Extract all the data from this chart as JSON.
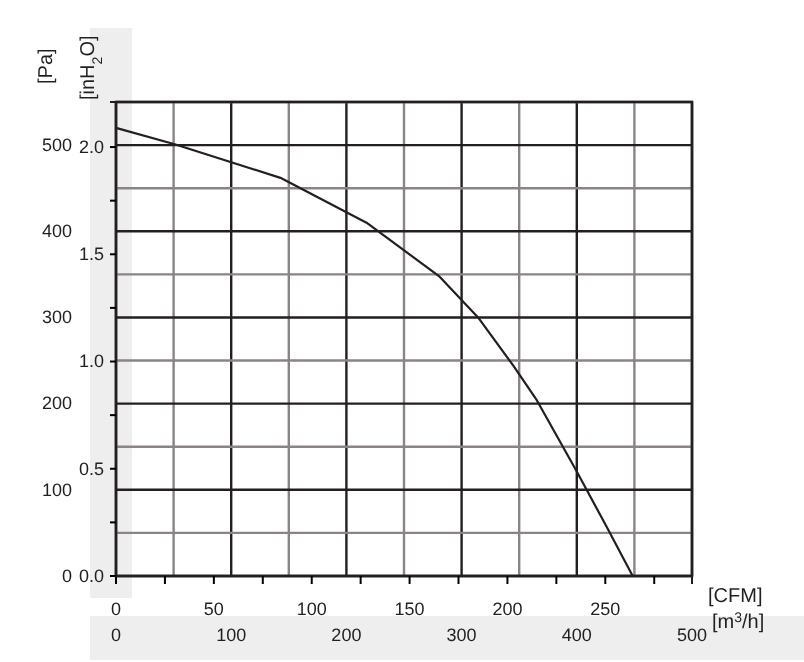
{
  "chart_data": {
    "type": "line",
    "xlabel": "[CFM]",
    "x2label": "[m$^{3}$/h]",
    "ylabel": "[Pa]",
    "y2label": "[inH$_{2}$O]",
    "x": [
      0,
      30,
      84,
      128,
      165,
      185,
      203,
      215,
      235,
      250,
      264
    ],
    "series": [
      {
        "color": "#231f20",
        "values": [
          520,
          501,
          462,
          410,
          348,
          300,
          244,
          204,
          123,
          60,
          0
        ]
      }
    ],
    "xlim": [
      0,
      294.3
    ],
    "xticks": [
      0,
      {
        "value": 25,
        "label": null
      },
      50,
      {
        "value": 75,
        "label": null
      },
      100,
      {
        "value": 125,
        "label": null
      },
      150,
      {
        "value": 175,
        "label": null
      },
      200,
      {
        "value": 225,
        "label": null
      },
      250,
      {
        "value": 275,
        "label": null
      }
    ],
    "x2lim": [
      0,
      500
    ],
    "x2ticks": [
      0,
      {
        "value": 50,
        "label": null
      },
      100,
      {
        "value": 150,
        "label": null
      },
      200,
      {
        "value": 250,
        "label": null
      },
      300,
      {
        "value": 350,
        "label": null
      },
      400,
      {
        "value": 450,
        "label": null
      },
      500
    ],
    "ylim": [
      0,
      550
    ],
    "yticks": [
      0,
      {
        "value": 50,
        "label": null
      },
      100,
      {
        "value": 150,
        "label": null
      },
      200,
      {
        "value": 250,
        "label": null
      },
      300,
      {
        "value": 350,
        "label": null
      },
      400,
      {
        "value": 450,
        "label": null
      },
      500,
      {
        "value": 550,
        "label": null
      }
    ],
    "y2lim": [
      0,
      2.21
    ],
    "y2ticks": [
      {
        "value": 0,
        "label": "0.0"
      },
      {
        "value": 0.25,
        "label": null
      },
      0.5,
      {
        "value": 0.75,
        "label": null
      },
      {
        "value": 1,
        "label": "1.0"
      },
      {
        "value": 1.25,
        "label": null
      },
      1.5,
      {
        "value": 1.75,
        "label": null
      },
      {
        "value": 2,
        "label": "2.0"
      }
    ],
    "grid": true,
    "marker": "none",
    "line_style": "solid"
  }
}
